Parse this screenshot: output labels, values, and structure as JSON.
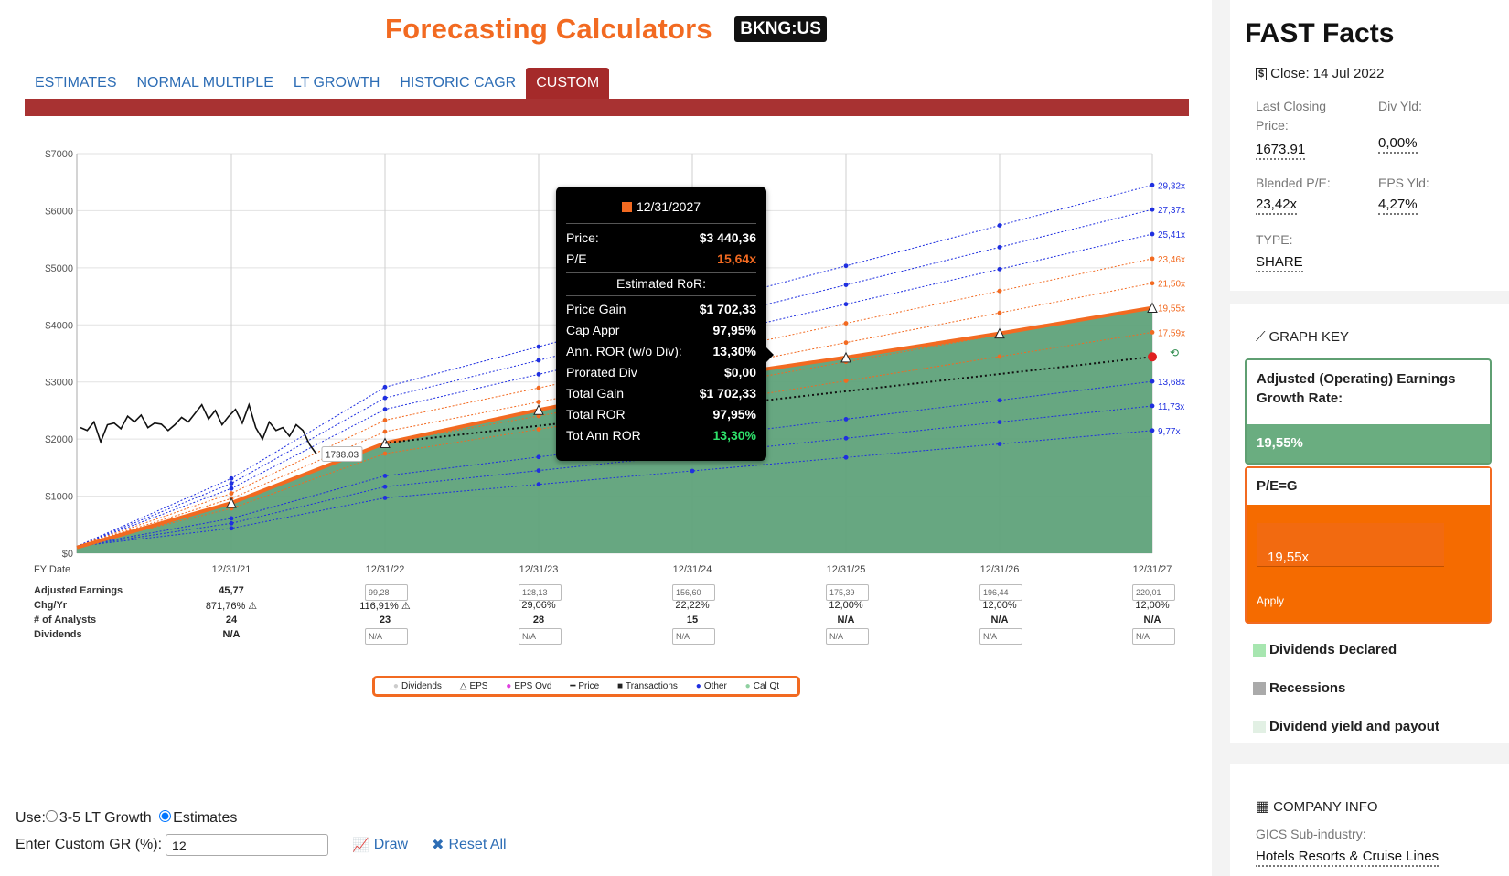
{
  "header": {
    "title": "Forecasting Calculators",
    "ticker": "BKNG:US"
  },
  "tabs": [
    {
      "label": "ESTIMATES",
      "active": false
    },
    {
      "label": "NORMAL MULTIPLE",
      "active": false
    },
    {
      "label": "LT GROWTH",
      "active": false
    },
    {
      "label": "HISTORIC CAGR",
      "active": false
    },
    {
      "label": "CUSTOM",
      "active": true
    }
  ],
  "chart_data": {
    "type": "area",
    "y_ticks": [
      "$7000",
      "$6000",
      "$5000",
      "$4000",
      "$3000",
      "$2000",
      "$1000",
      "$0"
    ],
    "ylim": [
      0,
      7000
    ],
    "x_categories": [
      "12/31/21",
      "12/31/22",
      "12/31/23",
      "12/31/24",
      "12/31/25",
      "12/31/26",
      "12/31/27"
    ],
    "price_label": "1738.03",
    "eps_price_line": [
      880,
      1930,
      2510,
      3040,
      3430,
      3850,
      4300
    ],
    "multiples": [
      {
        "label": "29,32x",
        "end": 6450,
        "start_2022": 2910,
        "color": "#1f2fe0"
      },
      {
        "label": "27,37x",
        "end": 6020,
        "start_2022": 2720,
        "color": "#1f2fe0"
      },
      {
        "label": "25,41x",
        "end": 5590,
        "start_2022": 2520,
        "color": "#1f2fe0"
      },
      {
        "label": "23,46x",
        "end": 5160,
        "start_2022": 2330,
        "color": "#f26a21"
      },
      {
        "label": "21,50x",
        "end": 4730,
        "start_2022": 2130,
        "color": "#f26a21"
      },
      {
        "label": "19,55x",
        "end": 4300,
        "start_2022": 1930,
        "color": "#f26a21"
      },
      {
        "label": "17,59x",
        "end": 3870,
        "start_2022": 1745,
        "color": "#f26a21"
      },
      {
        "label": "13,68x",
        "end": 3010,
        "start_2022": 1355,
        "color": "#1f2fe0"
      },
      {
        "label": "11,73x",
        "end": 2580,
        "start_2022": 1165,
        "color": "#1f2fe0"
      },
      {
        "label": "9,77x",
        "end": 2150,
        "start_2022": 970,
        "color": "#1f2fe0"
      }
    ]
  },
  "table": {
    "fy_label": "FY Date",
    "rows": [
      "Adjusted Earnings",
      "Chg/Yr",
      "# of Analysts",
      "Dividends"
    ],
    "earnings": [
      "45,77",
      "99,28",
      "128,13",
      "156,60",
      "175,39",
      "196,44",
      "220,01"
    ],
    "chg": [
      "871,76%",
      "116,91%",
      "29,06%",
      "22,22%",
      "12,00%",
      "12,00%",
      "12,00%"
    ],
    "analysts": [
      "24",
      "23",
      "28",
      "15",
      "N/A",
      "N/A",
      "N/A"
    ],
    "dividends": [
      "N/A",
      "N/A",
      "N/A",
      "N/A",
      "N/A",
      "N/A",
      "N/A"
    ]
  },
  "legend": [
    "Dividends",
    "EPS",
    "EPS Ovd",
    "Price",
    "Transactions",
    "Other",
    "Cal Qt"
  ],
  "tooltip": {
    "date": "12/31/2027",
    "price_label": "Price:",
    "price": "$3 440,36",
    "pe_label": "P/E",
    "pe": "15,64x",
    "ror_head": "Estimated RoR:",
    "rows": [
      {
        "label": "Price Gain",
        "value": "$1 702,33"
      },
      {
        "label": "Cap Appr",
        "value": "97,95%"
      },
      {
        "label": "Ann. ROR (w/o Div):",
        "value": "13,30%"
      },
      {
        "label": "Prorated Div",
        "value": "$0,00"
      },
      {
        "label": "Total Gain",
        "value": "$1 702,33"
      },
      {
        "label": "Total ROR",
        "value": "97,95%"
      },
      {
        "label": "Tot Ann ROR",
        "value": "13,30%"
      }
    ]
  },
  "controls": {
    "use_label": "Use:",
    "opt1": "3-5 LT Growth",
    "opt2": "Estimates",
    "gr_label": "Enter Custom GR (%):",
    "gr_value": "12",
    "draw": "Draw",
    "reset": "Reset All"
  },
  "fast_facts": {
    "title": "FAST Facts",
    "close": "Close: 14 Jul 2022",
    "last_price_label": "Last Closing Price:",
    "last_price": "1673.91",
    "div_yld_label": "Div Yld:",
    "div_yld": "0,00%",
    "pe_label": "Blended P/E:",
    "pe": "23,42x",
    "eps_yld_label": "EPS Yld:",
    "eps_yld": "4,27%",
    "type_label": "TYPE:",
    "type": "SHARE"
  },
  "graph_key": {
    "title": "GRAPH KEY",
    "growth_label": "Adjusted (Operating) Earnings Growth Rate:",
    "growth_value": "19,55%",
    "peg_label": "P/E=G",
    "peg_value": "19,55x",
    "apply": "Apply",
    "items": [
      "Dividends Declared",
      "Recessions",
      "Dividend yield and payout"
    ]
  },
  "company_info": {
    "title": "COMPANY INFO",
    "gics_label": "GICS Sub-industry:",
    "gics": "Hotels Resorts & Cruise Lines"
  }
}
